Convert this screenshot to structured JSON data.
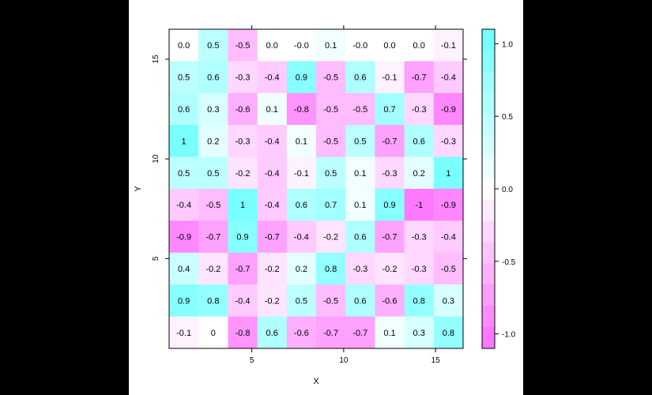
{
  "chart_data": {
    "type": "heatmap",
    "title": "",
    "xlabel": "X",
    "ylabel": "Y",
    "x_ticks": [
      5,
      10,
      15
    ],
    "y_ticks": [
      5,
      10,
      15
    ],
    "xlim": [
      0.5,
      16.5
    ],
    "ylim": [
      0.5,
      16.5
    ],
    "n_cols": 10,
    "n_rows": 10,
    "cell_labels": [
      [
        "0.0",
        "0.5",
        "-0.5",
        "0.0",
        "-0.0",
        "0.1",
        "-0.0",
        "0.0",
        "0.0",
        "-0.1"
      ],
      [
        "0.5",
        "0.6",
        "-0.3",
        "-0.4",
        "0.9",
        "-0.5",
        "0.6",
        "-0.1",
        "-0.7",
        "-0.4"
      ],
      [
        "0.6",
        "0.3",
        "-0.6",
        "0.1",
        "-0.8",
        "-0.5",
        "-0.5",
        "0.7",
        "-0.3",
        "-0.9"
      ],
      [
        "1",
        "0.2",
        "-0.3",
        "-0.4",
        "0.1",
        "-0.5",
        "0.5",
        "-0.7",
        "0.6",
        "-0.3"
      ],
      [
        "0.5",
        "0.5",
        "-0.2",
        "-0.4",
        "-0.1",
        "0.5",
        "0.1",
        "-0.3",
        "0.2",
        "1"
      ],
      [
        "-0.4",
        "-0.5",
        "1",
        "-0.4",
        "0.6",
        "0.7",
        "0.1",
        "0.9",
        "-1",
        "-0.9"
      ],
      [
        "-0.9",
        "-0.7",
        "0.9",
        "-0.7",
        "-0.4",
        "-0.2",
        "0.6",
        "-0.7",
        "-0.3",
        "-0.4"
      ],
      [
        "0.4",
        "-0.2",
        "-0.7",
        "-0.2",
        "0.2",
        "0.8",
        "-0.3",
        "-0.2",
        "-0.3",
        "-0.5"
      ],
      [
        "0.9",
        "0.8",
        "-0.4",
        "-0.2",
        "0.5",
        "-0.5",
        "0.6",
        "-0.6",
        "0.8",
        "0.3"
      ],
      [
        "-0.1",
        "0",
        "-0.8",
        "0.6",
        "-0.6",
        "-0.7",
        "-0.7",
        "0.1",
        "0.3",
        "0.8"
      ]
    ],
    "colorbar": {
      "ticks": [
        "1.0",
        "0.5",
        "0.0",
        "-0.5",
        "-1.0"
      ],
      "tick_values": [
        1.0,
        0.5,
        0.0,
        -0.5,
        -1.0
      ],
      "range": [
        -1.1,
        1.1
      ],
      "low_color": "#ff6cff",
      "mid_color": "#ffffff",
      "high_color": "#6cffff"
    }
  }
}
